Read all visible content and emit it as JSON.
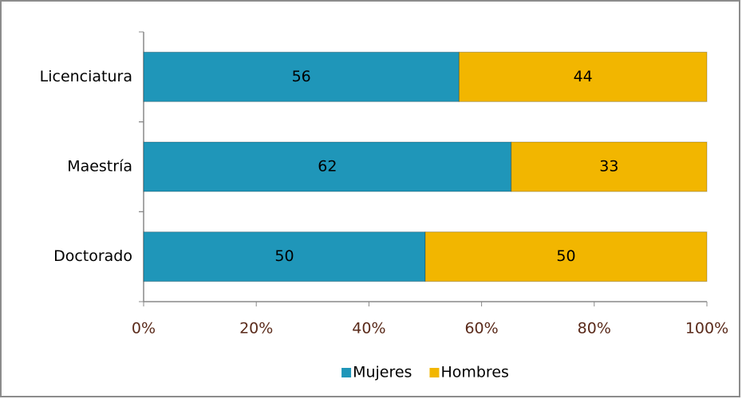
{
  "chart_data": {
    "type": "bar",
    "orientation": "horizontal",
    "stacked": "percent",
    "categories": [
      "Licenciatura",
      "Maestría",
      "Doctorado"
    ],
    "series": [
      {
        "name": "Mujeres",
        "color": "#1f96b9",
        "values": [
          56,
          62,
          50
        ]
      },
      {
        "name": "Hombres",
        "color": "#f2b600",
        "values": [
          44,
          33,
          50
        ]
      }
    ],
    "xlim": [
      0,
      100
    ],
    "xticks": [
      {
        "value": 0,
        "label": "0%"
      },
      {
        "value": 20,
        "label": "20%"
      },
      {
        "value": 40,
        "label": "40%"
      },
      {
        "value": 60,
        "label": "60%"
      },
      {
        "value": 80,
        "label": "80%"
      },
      {
        "value": 100,
        "label": "100%"
      }
    ],
    "legend": "bottom"
  }
}
